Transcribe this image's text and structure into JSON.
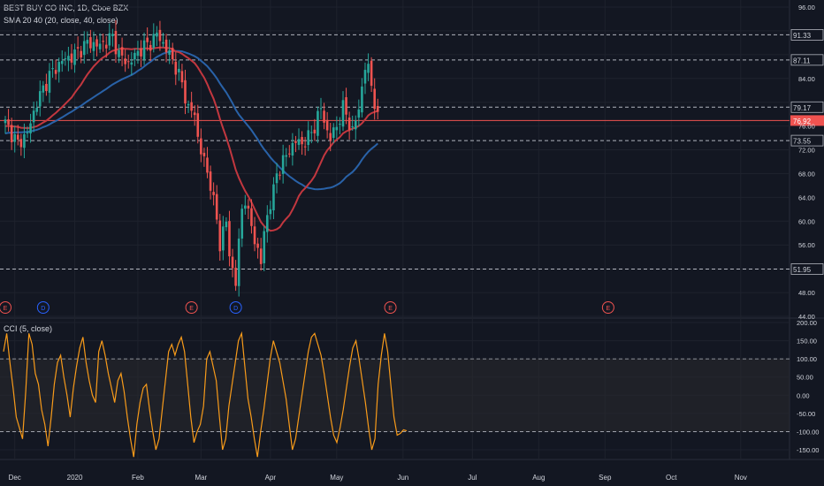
{
  "header": {
    "title": "BEST BUY CO INC, 1D, Cboe BZX",
    "sma_label": "SMA 20 40 (20, close, 40, close)",
    "cci_label": "CCI (5, close)"
  },
  "colors": {
    "background": "#131722",
    "grid": "#1e222d",
    "text": "#d1d4dc",
    "up": "#26a69a",
    "down": "#ef5350",
    "sma20": "#c2373f",
    "sma40": "#2962a8",
    "cci": "#f89b1a",
    "cci_band": "#2a2a2e",
    "last_price_bg": "#ef5350",
    "level_line": "#b2b5be"
  },
  "chart_data": [
    {
      "type": "candlestick",
      "title": "BEST BUY CO INC, 1D, Cboe BZX",
      "ylim": [
        44,
        98
      ],
      "y_ticks": [
        44,
        48,
        52,
        56,
        60,
        64,
        68,
        72,
        76,
        80,
        84,
        88,
        92,
        96
      ],
      "y_tick_labels": [
        "44.00",
        "48.00",
        "",
        "56.00",
        "60.00",
        "64.00",
        "68.00",
        "72.00",
        "76.00",
        "",
        "84.00",
        "",
        "",
        "96.00"
      ],
      "x_ticks": [
        "Dec",
        "2020",
        "Feb",
        "Mar",
        "Apr",
        "May",
        "Jun",
        "Jul",
        "Aug",
        "Sep",
        "Oct",
        "Nov"
      ],
      "x_tick_day_index": [
        3,
        22,
        42,
        62,
        84,
        105,
        126,
        148,
        169,
        190,
        211,
        233
      ],
      "horizontal_levels": [
        {
          "value": 91.33,
          "label": "91.33"
        },
        {
          "value": 87.11,
          "label": "87.11"
        },
        {
          "value": 79.17,
          "label": "79.17"
        },
        {
          "value": 73.55,
          "label": "73.55"
        },
        {
          "value": 51.95,
          "label": "51.95"
        }
      ],
      "last_price": {
        "value": 76.92,
        "label": "76.92"
      },
      "events": [
        {
          "letter": "E",
          "day_index": 0,
          "kind": "earnings"
        },
        {
          "letter": "D",
          "day_index": 12,
          "kind": "dividend"
        },
        {
          "letter": "E",
          "day_index": 59,
          "kind": "earnings"
        },
        {
          "letter": "D",
          "day_index": 73,
          "kind": "dividend"
        },
        {
          "letter": "E",
          "day_index": 122,
          "kind": "earnings"
        },
        {
          "letter": "E",
          "day_index": 191,
          "kind": "earnings"
        }
      ],
      "close_anchors": [
        [
          0,
          76.5
        ],
        [
          4,
          73
        ],
        [
          7,
          74.8
        ],
        [
          10,
          80
        ],
        [
          14,
          84.5
        ],
        [
          18,
          87
        ],
        [
          22,
          88
        ],
        [
          26,
          90
        ],
        [
          30,
          89.5
        ],
        [
          34,
          91
        ],
        [
          36,
          88
        ],
        [
          39,
          86.5
        ],
        [
          43,
          89
        ],
        [
          46,
          90
        ],
        [
          48,
          91.5
        ],
        [
          51,
          89
        ],
        [
          54,
          86
        ],
        [
          56,
          83
        ],
        [
          58,
          79
        ],
        [
          60,
          78
        ],
        [
          61,
          74
        ],
        [
          63,
          70
        ],
        [
          64,
          68
        ],
        [
          65,
          66.5
        ],
        [
          67,
          60
        ],
        [
          68,
          56
        ],
        [
          69,
          58.5
        ],
        [
          70,
          60
        ],
        [
          71,
          54
        ],
        [
          72,
          52
        ],
        [
          73,
          50
        ],
        [
          74,
          56
        ],
        [
          75,
          62
        ],
        [
          76,
          64
        ],
        [
          77,
          61
        ],
        [
          78,
          59
        ],
        [
          80,
          55
        ],
        [
          81,
          53
        ],
        [
          82,
          58
        ],
        [
          83,
          61
        ],
        [
          85,
          65
        ],
        [
          86,
          68
        ],
        [
          88,
          70
        ],
        [
          90,
          72
        ],
        [
          92,
          73.5
        ],
        [
          94,
          73
        ],
        [
          96,
          74
        ],
        [
          98,
          76
        ],
        [
          100,
          79
        ],
        [
          102,
          75
        ],
        [
          103,
          74
        ],
        [
          105,
          76
        ],
        [
          107,
          79
        ],
        [
          108,
          78
        ],
        [
          110,
          75
        ],
        [
          112,
          79
        ],
        [
          114,
          86
        ],
        [
          115,
          85.5
        ],
        [
          116,
          83
        ],
        [
          117,
          80
        ],
        [
          118,
          77
        ]
      ],
      "series": [
        {
          "name": "SMA 20",
          "kind": "sma",
          "period": 20
        },
        {
          "name": "SMA 40",
          "kind": "sma",
          "period": 40
        }
      ]
    },
    {
      "type": "line",
      "title": "CCI (5, close)",
      "ylim": [
        -180,
        205
      ],
      "y_ticks": [
        200,
        150,
        100,
        50,
        0,
        -50,
        -100,
        -150
      ],
      "y_tick_labels": [
        "200.00",
        "150.00",
        "100.00",
        "50.00",
        "0.00",
        "-50.00",
        "-100.00",
        "-150.00"
      ],
      "band": [
        -100,
        100
      ],
      "series": [
        {
          "name": "CCI",
          "values": [
            120,
            170,
            90,
            20,
            -60,
            -90,
            -120,
            10,
            170,
            140,
            60,
            30,
            -40,
            -80,
            -140,
            -60,
            30,
            90,
            110,
            50,
            0,
            -60,
            20,
            80,
            130,
            160,
            90,
            40,
            0,
            -20,
            120,
            150,
            110,
            60,
            20,
            -20,
            40,
            60,
            10,
            -60,
            -120,
            -170,
            -80,
            -20,
            20,
            30,
            -40,
            -100,
            -150,
            -120,
            -40,
            40,
            120,
            140,
            110,
            140,
            160,
            120,
            30,
            -60,
            -130,
            -100,
            -80,
            -30,
            100,
            120,
            80,
            40,
            -60,
            -150,
            -120,
            -30,
            30,
            90,
            150,
            170,
            80,
            -10,
            -60,
            -120,
            -170,
            -100,
            -40,
            30,
            100,
            150,
            120,
            90,
            40,
            -10,
            -80,
            -150,
            -120,
            -60,
            0,
            60,
            120,
            160,
            170,
            140,
            110,
            60,
            0,
            -60,
            -110,
            -130,
            -90,
            -40,
            20,
            80,
            130,
            150,
            100,
            40,
            -20,
            -90,
            -150,
            -120,
            30,
            110,
            170,
            120,
            30,
            -60,
            -110,
            -105,
            -95,
            -98
          ]
        }
      ]
    }
  ]
}
